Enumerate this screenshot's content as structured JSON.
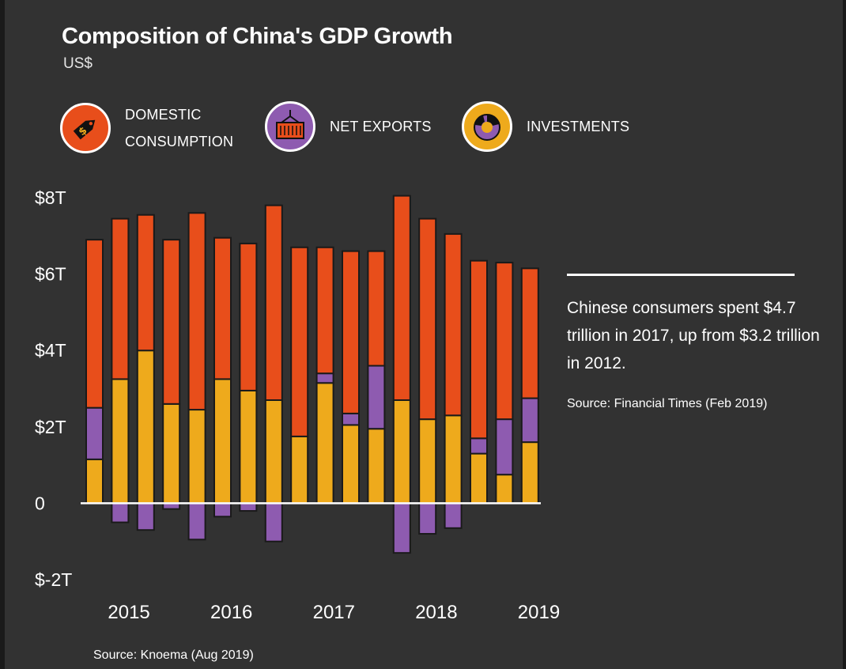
{
  "title": "Composition of China's GDP Growth",
  "subtitle": "US$",
  "legend": [
    {
      "label_line1": "DOMESTIC",
      "label_line2": "CONSUMPTION",
      "icon": "price-tag-icon",
      "color": "#e84e1b"
    },
    {
      "label_line1": "NET EXPORTS",
      "label_line2": "",
      "icon": "shipping-container-icon",
      "color": "#8e5bb0"
    },
    {
      "label_line1": "INVESTMENTS",
      "label_line2": "",
      "icon": "pie-chart-icon",
      "color": "#eeaa1c"
    }
  ],
  "annotation": {
    "text": "Chinese consumers spent $4.7 trillion in 2017, up from $3.2 trillion in 2012.",
    "source": "Source: Financial Times (Feb 2019)"
  },
  "source": "Source: Knoema (Aug 2019)",
  "chart_data": {
    "type": "bar",
    "stacked": true,
    "ylim": [
      -2,
      8
    ],
    "yticks": [
      {
        "value": 8,
        "label": "$8T"
      },
      {
        "value": 6,
        "label": "$6T"
      },
      {
        "value": 4,
        "label": "$4T"
      },
      {
        "value": 2,
        "label": "$2T"
      },
      {
        "value": 0,
        "label": "0"
      },
      {
        "value": -2,
        "label": "$-2T"
      }
    ],
    "xticks": [
      {
        "label": "2015",
        "index": 1.5
      },
      {
        "label": "2016",
        "index": 5.5
      },
      {
        "label": "2017",
        "index": 9.5
      },
      {
        "label": "2018",
        "index": 13.5
      },
      {
        "label": "2019",
        "index": 17.5
      }
    ],
    "colors": {
      "consumption": "#e84e1b",
      "net_exports": "#8e5bb0",
      "investments": "#eeaa1c"
    },
    "series": [
      {
        "name": "INVESTMENTS",
        "key": "investments",
        "values": [
          1.15,
          3.25,
          4.0,
          2.6,
          2.45,
          3.25,
          2.95,
          2.7,
          1.75,
          3.15,
          2.05,
          1.95,
          2.7,
          2.2,
          2.3,
          1.3,
          0.75,
          1.6
        ]
      },
      {
        "name": "NET EXPORTS",
        "key": "net_exports",
        "values": [
          1.35,
          -0.5,
          -0.7,
          -0.15,
          -0.95,
          -0.35,
          -0.2,
          -1.0,
          0,
          0.25,
          0.3,
          1.65,
          -1.3,
          -0.8,
          -0.65,
          0.4,
          1.45,
          1.15
        ]
      },
      {
        "name": "DOMESTIC CONSUMPTION",
        "key": "consumption",
        "values": [
          4.4,
          4.2,
          3.55,
          4.3,
          5.15,
          3.7,
          3.85,
          5.1,
          4.95,
          3.3,
          4.25,
          3.0,
          5.35,
          5.25,
          4.75,
          4.65,
          4.1,
          3.4
        ]
      }
    ]
  }
}
